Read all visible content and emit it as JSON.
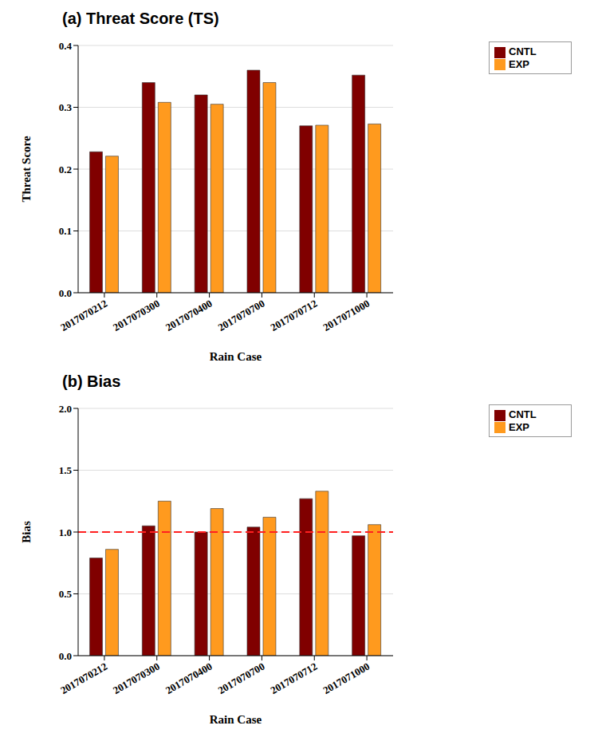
{
  "chart_data": [
    {
      "type": "bar",
      "title": "(a) Threat Score (TS)",
      "x_label": "Rain Case",
      "y_label": "Threat Score",
      "categories": [
        "2017070212",
        "2017070300",
        "2017070400",
        "2017070700",
        "2017070712",
        "2017071000"
      ],
      "series": [
        {
          "name": "CNTL",
          "color": "#800000",
          "values": [
            0.228,
            0.34,
            0.32,
            0.36,
            0.27,
            0.352
          ]
        },
        {
          "name": "EXP",
          "color": "#ff9a1e",
          "values": [
            0.221,
            0.308,
            0.305,
            0.34,
            0.271,
            0.273
          ]
        }
      ],
      "ylim": [
        0,
        0.4
      ],
      "yticks": [
        {
          "value": 0,
          "label": "0.0"
        },
        {
          "value": 0.1,
          "label": "0.1"
        },
        {
          "value": 0.2,
          "label": "0.2"
        },
        {
          "value": 0.3,
          "label": "0.3"
        },
        {
          "value": 0.4,
          "label": "0.4"
        }
      ],
      "grid": true,
      "legend": "right"
    },
    {
      "type": "bar",
      "title": "(b) Bias",
      "x_label": "Rain Case",
      "y_label": "Bias",
      "categories": [
        "2017070212",
        "2017070300",
        "2017070400",
        "2017070700",
        "2017070712",
        "2017071000"
      ],
      "series": [
        {
          "name": "CNTL",
          "color": "#800000",
          "values": [
            0.79,
            1.05,
            1.0,
            1.04,
            1.27,
            0.97
          ]
        },
        {
          "name": "EXP",
          "color": "#ff9a1e",
          "values": [
            0.86,
            1.25,
            1.19,
            1.12,
            1.33,
            1.06
          ]
        }
      ],
      "ylim": [
        0,
        2
      ],
      "yticks": [
        {
          "value": 0,
          "label": "0.0"
        },
        {
          "value": 0.5,
          "label": "0.5"
        },
        {
          "value": 1,
          "label": "1.0"
        },
        {
          "value": 1.5,
          "label": "1.5"
        },
        {
          "value": 2,
          "label": "2.0"
        }
      ],
      "reference_line": 1,
      "grid": true,
      "legend": "right"
    }
  ]
}
